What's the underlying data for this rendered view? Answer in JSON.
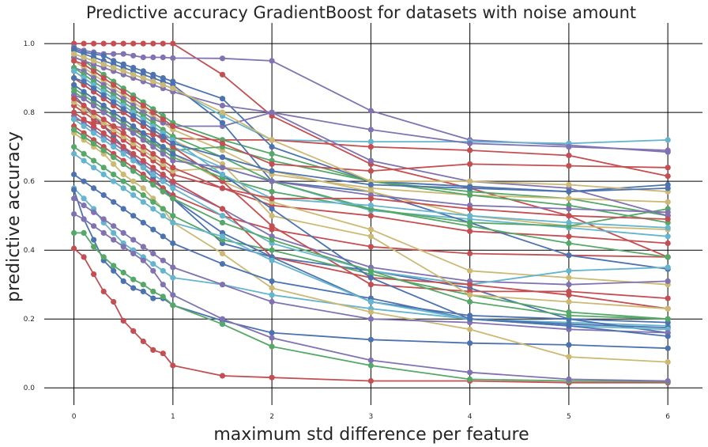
{
  "chart_data": {
    "type": "line",
    "title": "Predictive accuracy GradientBoost for datasets with noise amount",
    "xlabel": "maximum std difference per feature",
    "ylabel": "predictive accuracy",
    "x": [
      0,
      0.1,
      0.2,
      0.3,
      0.4,
      0.5,
      0.6,
      0.7,
      0.8,
      0.9,
      1,
      1.5,
      2,
      3,
      4,
      5,
      6
    ],
    "xticks": [
      "0",
      "1",
      "2",
      "3",
      "4",
      "5",
      "6"
    ],
    "yticks": [
      "0.0",
      "0.2",
      "0.4",
      "0.6",
      "0.8",
      "1.0"
    ],
    "xlim": [
      -0.3,
      6.35
    ],
    "ylim": [
      -0.05,
      1.06
    ],
    "grid": true,
    "colors": {
      "blue": "#4c72b0",
      "green": "#55a868",
      "red": "#c44e52",
      "purple": "#8172b2",
      "yellow": "#ccb974",
      "cyan": "#64b5cd"
    },
    "series": [
      {
        "color": "#c44e52",
        "values": [
          1.0,
          1.0,
          1.0,
          1.0,
          1.0,
          1.0,
          1.0,
          1.0,
          1.0,
          1.0,
          1.0,
          0.91,
          0.79,
          0.65,
          0.58,
          0.5,
          0.38
        ]
      },
      {
        "color": "#c44e52",
        "values": [
          0.405,
          0.38,
          0.33,
          0.28,
          0.25,
          0.195,
          0.165,
          0.135,
          0.11,
          0.1,
          0.065,
          0.035,
          0.03,
          0.02,
          0.02,
          0.015,
          0.015
        ]
      },
      {
        "color": "#8172b2",
        "values": [
          0.99,
          0.98,
          0.975,
          0.97,
          0.97,
          0.97,
          0.965,
          0.96,
          0.96,
          0.96,
          0.958,
          0.957,
          0.95,
          0.805,
          0.72,
          0.705,
          0.685
        ]
      },
      {
        "color": "#64b5cd",
        "values": [
          0.58,
          0.55,
          0.52,
          0.48,
          0.45,
          0.42,
          0.4,
          0.38,
          0.36,
          0.34,
          0.32,
          0.3,
          0.27,
          0.23,
          0.2,
          0.19,
          0.18
        ]
      },
      {
        "color": "#4c72b0",
        "values": [
          0.575,
          0.49,
          0.43,
          0.37,
          0.34,
          0.31,
          0.29,
          0.28,
          0.26,
          0.26,
          0.24,
          0.195,
          0.16,
          0.14,
          0.13,
          0.125,
          0.115
        ]
      },
      {
        "color": "#55a868",
        "values": [
          0.45,
          0.45,
          0.41,
          0.38,
          0.355,
          0.335,
          0.315,
          0.3,
          0.28,
          0.265,
          0.24,
          0.185,
          0.12,
          0.065,
          0.025,
          0.02,
          0.018
        ]
      },
      {
        "color": "#8172b2",
        "values": [
          0.505,
          0.49,
          0.47,
          0.45,
          0.43,
          0.41,
          0.39,
          0.37,
          0.34,
          0.3,
          0.27,
          0.2,
          0.145,
          0.08,
          0.045,
          0.025,
          0.02
        ]
      },
      {
        "color": "#ccb974",
        "values": [
          0.74,
          0.72,
          0.7,
          0.68,
          0.65,
          0.62,
          0.6,
          0.58,
          0.55,
          0.52,
          0.48,
          0.39,
          0.29,
          0.22,
          0.17,
          0.09,
          0.075
        ]
      },
      {
        "color": "#4c72b0",
        "values": [
          0.85,
          0.82,
          0.79,
          0.76,
          0.73,
          0.7,
          0.67,
          0.64,
          0.61,
          0.58,
          0.55,
          0.42,
          0.38,
          0.34,
          0.29,
          0.2,
          0.16
        ]
      },
      {
        "color": "#64b5cd",
        "values": [
          0.97,
          0.96,
          0.95,
          0.94,
          0.93,
          0.92,
          0.91,
          0.9,
          0.89,
          0.88,
          0.87,
          0.79,
          0.72,
          0.715,
          0.715,
          0.71,
          0.72
        ]
      },
      {
        "color": "#c44e52",
        "values": [
          0.78,
          0.775,
          0.77,
          0.765,
          0.76,
          0.755,
          0.75,
          0.74,
          0.735,
          0.73,
          0.725,
          0.72,
          0.72,
          0.7,
          0.69,
          0.675,
          0.615
        ]
      },
      {
        "color": "#55a868",
        "values": [
          0.96,
          0.95,
          0.93,
          0.91,
          0.89,
          0.87,
          0.85,
          0.83,
          0.81,
          0.79,
          0.77,
          0.72,
          0.68,
          0.6,
          0.57,
          0.55,
          0.5
        ]
      },
      {
        "color": "#c44e52",
        "values": [
          0.76,
          0.74,
          0.72,
          0.7,
          0.68,
          0.66,
          0.64,
          0.62,
          0.6,
          0.58,
          0.56,
          0.5,
          0.46,
          0.41,
          0.39,
          0.385,
          0.38
        ]
      },
      {
        "color": "#4c72b0",
        "values": [
          0.985,
          0.975,
          0.97,
          0.965,
          0.95,
          0.94,
          0.93,
          0.92,
          0.91,
          0.9,
          0.89,
          0.84,
          0.7,
          0.6,
          0.585,
          0.57,
          0.59
        ]
      },
      {
        "color": "#ccb974",
        "values": [
          0.95,
          0.93,
          0.91,
          0.89,
          0.87,
          0.85,
          0.83,
          0.81,
          0.79,
          0.77,
          0.75,
          0.69,
          0.62,
          0.58,
          0.56,
          0.55,
          0.54
        ]
      },
      {
        "color": "#8172b2",
        "values": [
          0.93,
          0.92,
          0.9,
          0.88,
          0.86,
          0.84,
          0.82,
          0.8,
          0.78,
          0.77,
          0.76,
          0.76,
          0.8,
          0.75,
          0.71,
          0.7,
          0.69
        ]
      },
      {
        "color": "#55a868",
        "values": [
          0.86,
          0.84,
          0.82,
          0.8,
          0.78,
          0.76,
          0.74,
          0.72,
          0.71,
          0.7,
          0.69,
          0.7,
          0.66,
          0.6,
          0.56,
          0.53,
          0.48
        ]
      },
      {
        "color": "#64b5cd",
        "values": [
          0.9,
          0.88,
          0.86,
          0.84,
          0.82,
          0.8,
          0.78,
          0.76,
          0.74,
          0.72,
          0.7,
          0.64,
          0.6,
          0.515,
          0.49,
          0.465,
          0.44
        ]
      },
      {
        "color": "#c44e52",
        "values": [
          0.82,
          0.8,
          0.78,
          0.76,
          0.74,
          0.72,
          0.7,
          0.68,
          0.66,
          0.64,
          0.62,
          0.58,
          0.53,
          0.5,
          0.455,
          0.44,
          0.42
        ]
      },
      {
        "color": "#4c72b0",
        "values": [
          0.62,
          0.6,
          0.58,
          0.56,
          0.54,
          0.52,
          0.5,
          0.48,
          0.46,
          0.44,
          0.42,
          0.36,
          0.31,
          0.26,
          0.2,
          0.185,
          0.175
        ]
      },
      {
        "color": "#ccb974",
        "values": [
          0.88,
          0.86,
          0.84,
          0.82,
          0.8,
          0.78,
          0.76,
          0.74,
          0.72,
          0.7,
          0.68,
          0.6,
          0.54,
          0.46,
          0.34,
          0.32,
          0.3
        ]
      },
      {
        "color": "#8172b2",
        "values": [
          0.79,
          0.77,
          0.75,
          0.73,
          0.71,
          0.69,
          0.67,
          0.65,
          0.63,
          0.61,
          0.59,
          0.52,
          0.44,
          0.35,
          0.31,
          0.3,
          0.31
        ]
      },
      {
        "color": "#55a868",
        "values": [
          0.7,
          0.68,
          0.66,
          0.64,
          0.62,
          0.6,
          0.58,
          0.56,
          0.54,
          0.52,
          0.5,
          0.43,
          0.4,
          0.33,
          0.27,
          0.22,
          0.2
        ]
      },
      {
        "color": "#c44e52",
        "values": [
          0.9,
          0.88,
          0.86,
          0.84,
          0.82,
          0.8,
          0.78,
          0.76,
          0.74,
          0.72,
          0.7,
          0.6,
          0.47,
          0.3,
          0.28,
          0.28,
          0.26
        ]
      },
      {
        "color": "#4c72b0",
        "values": [
          0.98,
          0.97,
          0.96,
          0.95,
          0.94,
          0.93,
          0.92,
          0.91,
          0.9,
          0.89,
          0.88,
          0.77,
          0.6,
          0.57,
          0.48,
          0.385,
          0.345
        ]
      },
      {
        "color": "#64b5cd",
        "values": [
          0.78,
          0.76,
          0.74,
          0.72,
          0.7,
          0.68,
          0.66,
          0.64,
          0.62,
          0.6,
          0.58,
          0.5,
          0.42,
          0.34,
          0.3,
          0.34,
          0.35
        ]
      },
      {
        "color": "#ccb974",
        "values": [
          0.83,
          0.81,
          0.79,
          0.77,
          0.75,
          0.73,
          0.71,
          0.69,
          0.67,
          0.65,
          0.63,
          0.64,
          0.63,
          0.57,
          0.5,
          0.47,
          0.46
        ]
      },
      {
        "color": "#8172b2",
        "values": [
          0.96,
          0.95,
          0.94,
          0.93,
          0.92,
          0.91,
          0.9,
          0.89,
          0.88,
          0.87,
          0.86,
          0.82,
          0.8,
          0.66,
          0.6,
          0.58,
          0.5
        ]
      },
      {
        "color": "#55a868",
        "values": [
          0.87,
          0.85,
          0.83,
          0.81,
          0.79,
          0.77,
          0.75,
          0.73,
          0.71,
          0.69,
          0.67,
          0.61,
          0.57,
          0.52,
          0.47,
          0.42,
          0.38
        ]
      },
      {
        "color": "#c44e52",
        "values": [
          0.8,
          0.78,
          0.76,
          0.74,
          0.72,
          0.7,
          0.68,
          0.66,
          0.64,
          0.62,
          0.6,
          0.52,
          0.38,
          0.32,
          0.3,
          0.27,
          0.23
        ]
      },
      {
        "color": "#4c72b0",
        "values": [
          0.75,
          0.73,
          0.71,
          0.69,
          0.67,
          0.65,
          0.63,
          0.61,
          0.59,
          0.57,
          0.55,
          0.45,
          0.38,
          0.25,
          0.21,
          0.2,
          0.19
        ]
      },
      {
        "color": "#64b5cd",
        "values": [
          0.68,
          0.66,
          0.64,
          0.62,
          0.6,
          0.58,
          0.56,
          0.54,
          0.52,
          0.5,
          0.48,
          0.44,
          0.37,
          0.25,
          0.2,
          0.18,
          0.17
        ]
      },
      {
        "color": "#ccb974",
        "values": [
          0.92,
          0.9,
          0.88,
          0.86,
          0.84,
          0.82,
          0.8,
          0.78,
          0.76,
          0.74,
          0.72,
          0.65,
          0.5,
          0.44,
          0.27,
          0.25,
          0.23
        ]
      },
      {
        "color": "#8172b2",
        "values": [
          0.55,
          0.53,
          0.51,
          0.49,
          0.47,
          0.45,
          0.43,
          0.41,
          0.39,
          0.37,
          0.35,
          0.3,
          0.25,
          0.2,
          0.19,
          0.17,
          0.16
        ]
      },
      {
        "color": "#55a868",
        "values": [
          0.93,
          0.91,
          0.89,
          0.87,
          0.85,
          0.83,
          0.81,
          0.79,
          0.77,
          0.75,
          0.73,
          0.67,
          0.6,
          0.52,
          0.48,
          0.47,
          0.52
        ]
      },
      {
        "color": "#c44e52",
        "values": [
          0.95,
          0.94,
          0.92,
          0.9,
          0.88,
          0.86,
          0.84,
          0.82,
          0.8,
          0.78,
          0.76,
          0.71,
          0.65,
          0.63,
          0.65,
          0.645,
          0.64
        ]
      },
      {
        "color": "#4c72b0",
        "values": [
          0.88,
          0.86,
          0.84,
          0.82,
          0.8,
          0.78,
          0.76,
          0.74,
          0.72,
          0.7,
          0.68,
          0.62,
          0.52,
          0.32,
          0.2,
          0.18,
          0.15
        ]
      },
      {
        "color": "#64b5cd",
        "values": [
          0.92,
          0.9,
          0.88,
          0.86,
          0.84,
          0.82,
          0.8,
          0.78,
          0.76,
          0.74,
          0.72,
          0.62,
          0.55,
          0.53,
          0.5,
          0.48,
          0.465
        ]
      },
      {
        "color": "#ccb974",
        "values": [
          0.97,
          0.96,
          0.95,
          0.94,
          0.93,
          0.92,
          0.91,
          0.9,
          0.89,
          0.88,
          0.87,
          0.8,
          0.72,
          0.6,
          0.6,
          0.59,
          0.57
        ]
      },
      {
        "color": "#8172b2",
        "values": [
          0.85,
          0.84,
          0.82,
          0.8,
          0.78,
          0.76,
          0.74,
          0.72,
          0.7,
          0.68,
          0.66,
          0.64,
          0.6,
          0.56,
          0.53,
          0.52,
          0.51
        ]
      },
      {
        "color": "#55a868",
        "values": [
          0.75,
          0.73,
          0.71,
          0.69,
          0.67,
          0.65,
          0.63,
          0.61,
          0.59,
          0.57,
          0.55,
          0.48,
          0.43,
          0.34,
          0.25,
          0.21,
          0.2
        ]
      },
      {
        "color": "#4c72b0",
        "values": [
          0.9,
          0.89,
          0.87,
          0.85,
          0.83,
          0.81,
          0.79,
          0.77,
          0.75,
          0.73,
          0.71,
          0.67,
          0.63,
          0.59,
          0.58,
          0.57,
          0.58
        ]
      },
      {
        "color": "#c44e52",
        "values": [
          0.84,
          0.82,
          0.8,
          0.78,
          0.76,
          0.74,
          0.72,
          0.7,
          0.68,
          0.66,
          0.64,
          0.58,
          0.55,
          0.55,
          0.52,
          0.5,
          0.49
        ]
      }
    ]
  }
}
